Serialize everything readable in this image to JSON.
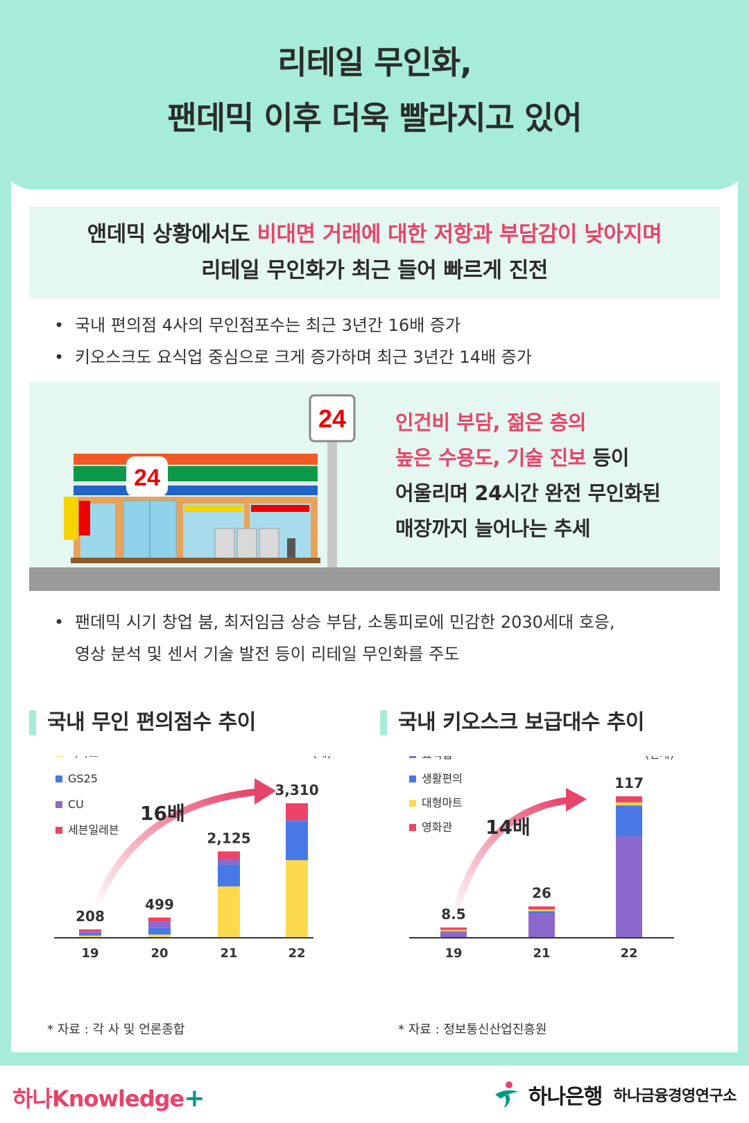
{
  "header": {
    "title_line1": "리테일 무인화,",
    "title_line2": "팬데믹 이후 더욱 빨라지고 있어"
  },
  "summary": {
    "line1_prefix": "앤데믹 상황에서도 ",
    "line1_highlight": "비대면 거래에 대한 저항과 부담감이 낮아지며",
    "line2": "리테일 무인화가 최근 들어 빠르게 진전"
  },
  "bullets_top": [
    "국내 편의점 4사의 무인점포수는 최근 3년간 16배 증가",
    "키오스크도 요식업 중심으로 크게 증가하며 최근 3년간 14배 증가"
  ],
  "store": {
    "sign_number": "24",
    "store_sign_number": "24",
    "text_line1": "인건비 부담, 젊은 층의",
    "text_line2_highlight": "높은 수용도, 기술 진보",
    "text_line2_suffix": " 등이",
    "text_line3": "어울리며 24시간 완전 무인화된",
    "text_line4": "매장까지 늘어나는 추세"
  },
  "bullet_bottom": {
    "line1": "팬데믹 시기 창업 붐, 최저임금 상승 부담, 소통피로에 민감한 2030세대 호응,",
    "line2": "영상 분석 및 센서 기술 발전 등이 리테일 무인화를 주도"
  },
  "colors": {
    "mint": "#a6ecd9",
    "light_mint": "#e5f7f1",
    "pink": "#e8436a",
    "yellow": "#fdd94e",
    "blue": "#4878e6",
    "purple": "#8b69cc",
    "red": "#ee4266"
  },
  "chart_data": [
    {
      "type": "bar",
      "stacked": true,
      "title": "국내 무인 편의점수 추이",
      "unit": "(개)",
      "categories": [
        "19",
        "20",
        "21",
        "22"
      ],
      "totals": [
        208,
        499,
        2125,
        3310
      ],
      "total_labels": [
        "208",
        "499",
        "2,125",
        "3,310"
      ],
      "series": [
        {
          "name": "이마트",
          "color": "#fdd94e",
          "values": [
            55,
            80,
            1265,
            1910
          ]
        },
        {
          "name": "GS25",
          "color": "#4878e6",
          "values": [
            48,
            170,
            540,
            950
          ]
        },
        {
          "name": "CU",
          "color": "#8b69cc",
          "values": [
            55,
            149,
            140,
            50
          ]
        },
        {
          "name": "세븐일레븐",
          "color": "#ee4266",
          "values": [
            50,
            100,
            180,
            400
          ]
        }
      ],
      "annotation": "16배",
      "source": "* 자료 : 각 사 및 언론종합"
    },
    {
      "type": "bar",
      "stacked": true,
      "title": "국내 키오스크 보급대수 추이",
      "unit": "(천개)",
      "categories": [
        "19",
        "21",
        "22"
      ],
      "totals": [
        8.5,
        26,
        117
      ],
      "total_labels": [
        "8.5",
        "26",
        "117"
      ],
      "series": [
        {
          "name": "요식업",
          "color": "#8b69cc",
          "values": [
            5.0,
            20.0,
            84.0
          ]
        },
        {
          "name": "생활편의",
          "color": "#4878e6",
          "values": [
            0.5,
            2.0,
            25.5
          ]
        },
        {
          "name": "대형마트",
          "color": "#fdd94e",
          "values": [
            1.0,
            1.5,
            2.5
          ]
        },
        {
          "name": "영화관",
          "color": "#ee4266",
          "values": [
            2.0,
            2.5,
            5.0
          ]
        }
      ],
      "annotation": "14배",
      "source": "* 자료 : 정보통신산업진흥원"
    }
  ],
  "footer": {
    "brand_hana": "하나",
    "brand_knowledge": "Knowledge",
    "brand_plus": "+",
    "bank_name": "하나은행",
    "institute_name": "하나금융경영연구소"
  }
}
